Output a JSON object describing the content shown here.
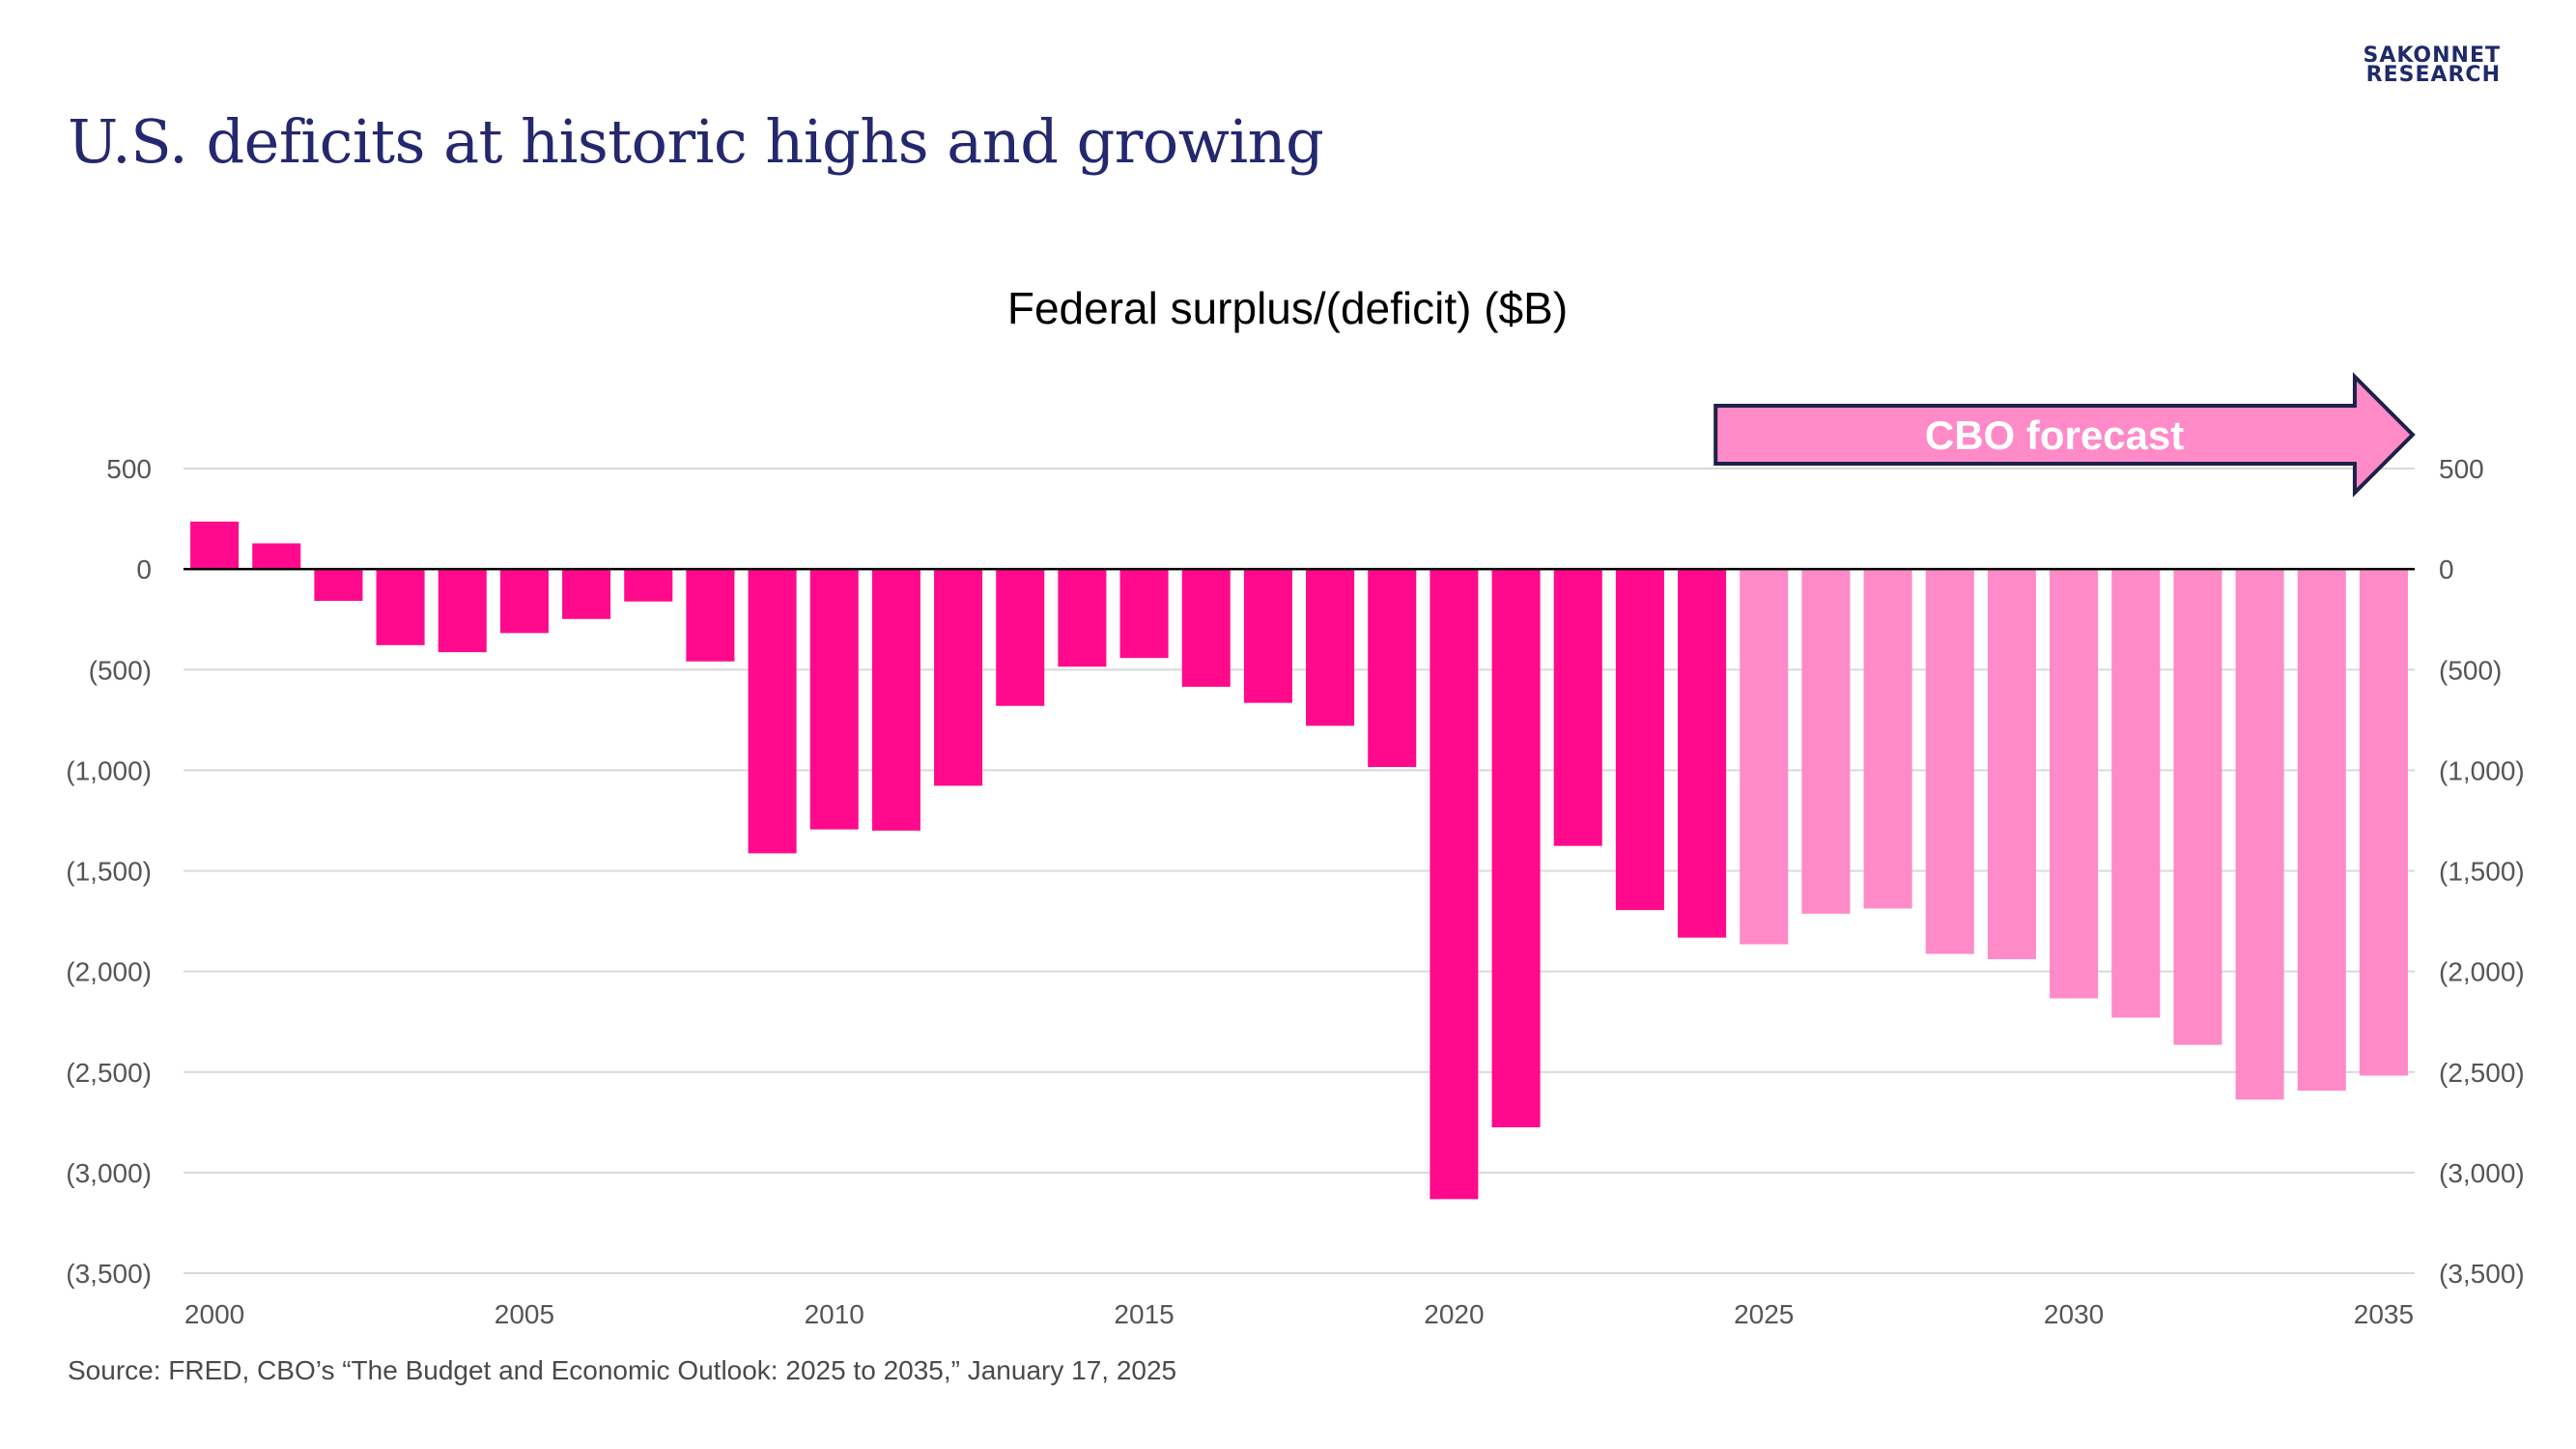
{
  "slide_title": "U.S. deficits at historic highs and growing",
  "logo": {
    "line1": "SAKONNET",
    "line2": "RESEARCH"
  },
  "source_note": "Source: FRED, CBO’s “The Budget and Economic Outlook: 2025 to 2035,” January 17, 2025",
  "colors": {
    "title": "#24286e",
    "actual": "#ff0a8c",
    "forecast": "#ff8ac8",
    "arrow_fill": "#ff8ac8",
    "arrow_stroke": "#1c2248",
    "grid": "#d9d9d9",
    "zero_line": "#000000"
  },
  "chart_data": {
    "type": "bar",
    "title": "Federal surplus/(deficit) ($B)",
    "xlabel": "",
    "ylabel": "",
    "categories": [
      "2000",
      "2001",
      "2002",
      "2003",
      "2004",
      "2005",
      "2006",
      "2007",
      "2008",
      "2009",
      "2010",
      "2011",
      "2012",
      "2013",
      "2014",
      "2015",
      "2016",
      "2017",
      "2018",
      "2019",
      "2020",
      "2021",
      "2022",
      "2023",
      "2024",
      "2025",
      "2026",
      "2027",
      "2028",
      "2029",
      "2030",
      "2031",
      "2032",
      "2033",
      "2034",
      "2035"
    ],
    "series": [
      {
        "type": "actual",
        "values": [
          236,
          128,
          -158,
          -378,
          -413,
          -318,
          -248,
          -161,
          -459,
          -1413,
          -1294,
          -1300,
          -1077,
          -680,
          -485,
          -442,
          -585,
          -665,
          -779,
          -984,
          -3132,
          -2775,
          -1376,
          -1695,
          -1832,
          null,
          null,
          null,
          null,
          null,
          null,
          null,
          null,
          null,
          null,
          null
        ]
      },
      {
        "type": "forecast",
        "values": [
          null,
          null,
          null,
          null,
          null,
          null,
          null,
          null,
          null,
          null,
          null,
          null,
          null,
          null,
          null,
          null,
          null,
          null,
          null,
          null,
          null,
          null,
          null,
          null,
          null,
          -1865,
          -1713,
          -1687,
          -1913,
          -1939,
          -2134,
          -2230,
          -2365,
          -2637,
          -2593,
          -2518
        ]
      }
    ],
    "ylim": [
      -3500,
      500
    ],
    "y_ticks": [
      500,
      0,
      -500,
      -1000,
      -1500,
      -2000,
      -2500,
      -3000,
      -3500
    ],
    "y_tick_labels": [
      "500",
      "0",
      "(500)",
      "(1,000)",
      "(1,500)",
      "(2,000)",
      "(2,500)",
      "(3,000)",
      "(3,500)"
    ],
    "x_tick_labels": [
      "2000",
      "2005",
      "2010",
      "2015",
      "2020",
      "2025",
      "2030",
      "2035"
    ],
    "y_axes": "left and right",
    "grid": true,
    "annotation": {
      "text": "CBO forecast",
      "shape": "arrow",
      "start_category": "2025",
      "end_category": "2035"
    }
  }
}
